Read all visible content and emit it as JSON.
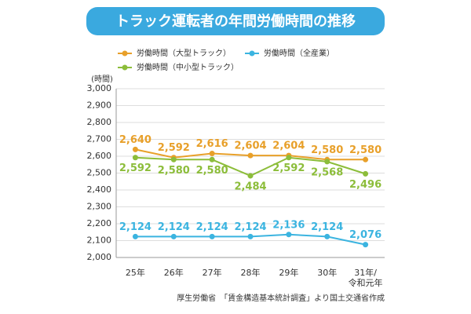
{
  "chart_data": {
    "type": "line",
    "title": "トラック運転者の年間労働時間の推移",
    "y_label": "(時間)",
    "source": "厚生労働省　「賃金構造基本統計調査」より国土交通省作成",
    "categories": [
      "25年",
      "26年",
      "27年",
      "28年",
      "29年",
      "30年",
      [
        "31年/",
        "令和元年"
      ]
    ],
    "series": [
      {
        "name": "労働時間（大型トラック）",
        "color": "#e8a02a",
        "label_position": "above",
        "values": [
          2640,
          2592,
          2616,
          2604,
          2604,
          2580,
          2580
        ],
        "value_labels": [
          "2,640",
          "2,592",
          "2,616",
          "2,604",
          "2,604",
          "2,580",
          "2,580"
        ]
      },
      {
        "name": "労働時間（全産業）",
        "color": "#3bb4e0",
        "label_position": "above",
        "values": [
          2124,
          2124,
          2124,
          2124,
          2136,
          2124,
          2076
        ],
        "value_labels": [
          "2,124",
          "2,124",
          "2,124",
          "2,124",
          "2,136",
          "2,124",
          "2,076"
        ]
      },
      {
        "name": "労働時間（中小型トラック）",
        "color": "#8cbd3a",
        "label_position": "below",
        "values": [
          2592,
          2580,
          2580,
          2484,
          2592,
          2568,
          2496
        ],
        "value_labels": [
          "2,592",
          "2,580",
          "2,580",
          "2,484",
          "2,592",
          "2,568",
          "2,496"
        ]
      }
    ],
    "ylim": [
      2000,
      3000
    ],
    "yticks": [
      {
        "value": 2000,
        "label": "2,000"
      },
      {
        "value": 2100,
        "label": "2,100"
      },
      {
        "value": 2200,
        "label": "2,200"
      },
      {
        "value": 2300,
        "label": "2,300"
      },
      {
        "value": 2400,
        "label": "2,400"
      },
      {
        "value": 2500,
        "label": "2,500"
      },
      {
        "value": 2600,
        "label": "2,600"
      },
      {
        "value": 2700,
        "label": "2,700"
      },
      {
        "value": 2800,
        "label": "2,800"
      },
      {
        "value": 2900,
        "label": "2,900"
      },
      {
        "value": 3000,
        "label": "3,000"
      }
    ],
    "grid": true
  }
}
